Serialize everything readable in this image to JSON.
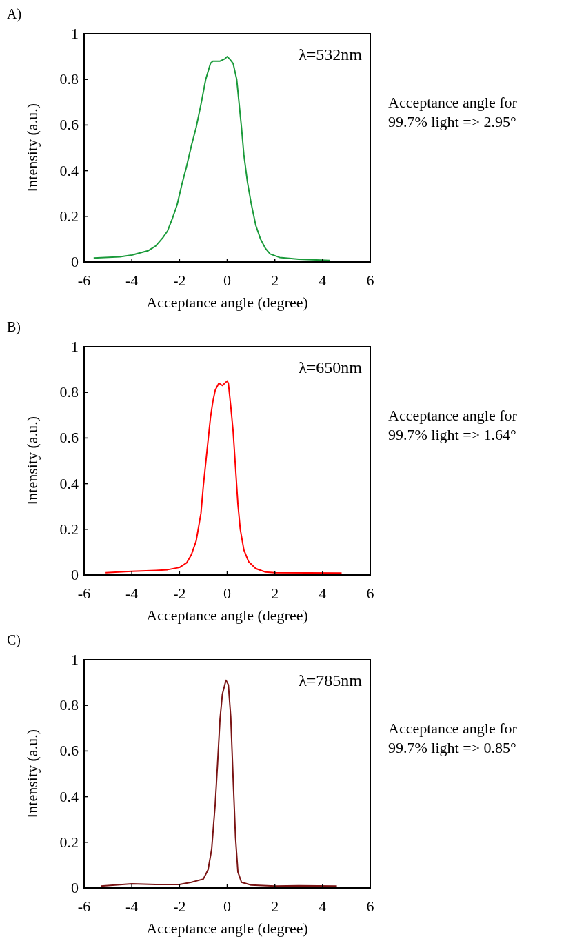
{
  "chart_data": [
    {
      "type": "line",
      "title": "A)",
      "xlabel": "Acceptance angle (degree)",
      "ylabel": "Intensity (a.u.)",
      "annotations": [
        "λ=532nm",
        "Acceptance angle for 99.7% light => 2.95°"
      ],
      "xlim": [
        -6,
        6
      ],
      "ylim": [
        0,
        1
      ],
      "xticks": [
        -6,
        -4,
        -2,
        0,
        2,
        4,
        6
      ],
      "yticks": [
        0,
        0.2,
        0.4,
        0.6,
        0.8,
        1
      ],
      "grid": false,
      "series": [
        {
          "color": "#1a9a3a",
          "x": [
            -5.6,
            -4.5,
            -4,
            -3.3,
            -3,
            -2.7,
            -2.5,
            -2.3,
            -2.1,
            -1.9,
            -1.7,
            -1.5,
            -1.3,
            -1.1,
            -0.9,
            -0.7,
            -0.6,
            -0.3,
            -0.1,
            0,
            0.1,
            0.25,
            0.4,
            0.6,
            0.7,
            0.85,
            1.0,
            1.2,
            1.4,
            1.6,
            1.8,
            2.2,
            3,
            4.3
          ],
          "values": [
            0.017,
            0.023,
            0.03,
            0.05,
            0.07,
            0.106,
            0.136,
            0.19,
            0.25,
            0.34,
            0.42,
            0.51,
            0.59,
            0.69,
            0.8,
            0.87,
            0.88,
            0.88,
            0.89,
            0.9,
            0.89,
            0.87,
            0.8,
            0.59,
            0.47,
            0.35,
            0.26,
            0.16,
            0.1,
            0.06,
            0.035,
            0.02,
            0.012,
            0.007
          ]
        }
      ]
    },
    {
      "type": "line",
      "title": "B)",
      "xlabel": "Acceptance angle (degree)",
      "ylabel": "Intensity (a.u.)",
      "annotations": [
        "λ=650nm",
        "Acceptance angle for 99.7% light => 1.64°"
      ],
      "xlim": [
        -6,
        6
      ],
      "ylim": [
        0,
        1
      ],
      "xticks": [
        -6,
        -4,
        -2,
        0,
        2,
        4,
        6
      ],
      "yticks": [
        0,
        0.2,
        0.4,
        0.6,
        0.8,
        1
      ],
      "grid": false,
      "series": [
        {
          "color": "#ff0000",
          "x": [
            -5.1,
            -4,
            -3,
            -2.5,
            -2,
            -1.7,
            -1.5,
            -1.3,
            -1.1,
            -1.0,
            -0.9,
            -0.8,
            -0.7,
            -0.6,
            -0.5,
            -0.35,
            -0.2,
            0,
            0.05,
            0.15,
            0.25,
            0.35,
            0.45,
            0.55,
            0.7,
            0.9,
            1.2,
            1.6,
            2,
            4.8
          ],
          "values": [
            0.01,
            0.016,
            0.02,
            0.023,
            0.033,
            0.053,
            0.089,
            0.149,
            0.27,
            0.39,
            0.49,
            0.59,
            0.69,
            0.76,
            0.81,
            0.84,
            0.83,
            0.85,
            0.84,
            0.74,
            0.63,
            0.47,
            0.31,
            0.2,
            0.11,
            0.058,
            0.028,
            0.013,
            0.01,
            0.008
          ]
        }
      ]
    },
    {
      "type": "line",
      "title": "C)",
      "xlabel": "Acceptance angle (degree)",
      "ylabel": "Intensity (a.u.)",
      "annotations": [
        "λ=785nm",
        "Acceptance angle for 99.7% light => 0.85°"
      ],
      "xlim": [
        -6,
        6
      ],
      "ylim": [
        0,
        1
      ],
      "xticks": [
        -6,
        -4,
        -2,
        0,
        2,
        4,
        6
      ],
      "yticks": [
        0,
        0.2,
        0.4,
        0.6,
        0.8,
        1
      ],
      "grid": false,
      "series": [
        {
          "color": "#7a1414",
          "x": [
            -5.3,
            -4,
            -3,
            -2,
            -1.5,
            -1.0,
            -0.8,
            -0.65,
            -0.5,
            -0.4,
            -0.3,
            -0.2,
            -0.05,
            0.05,
            0.15,
            0.25,
            0.35,
            0.45,
            0.6,
            1,
            2,
            3,
            4.6
          ],
          "values": [
            0.008,
            0.018,
            0.015,
            0.015,
            0.025,
            0.039,
            0.08,
            0.17,
            0.37,
            0.55,
            0.74,
            0.85,
            0.91,
            0.89,
            0.75,
            0.48,
            0.22,
            0.07,
            0.025,
            0.013,
            0.008,
            0.01,
            0.008
          ]
        }
      ]
    }
  ]
}
